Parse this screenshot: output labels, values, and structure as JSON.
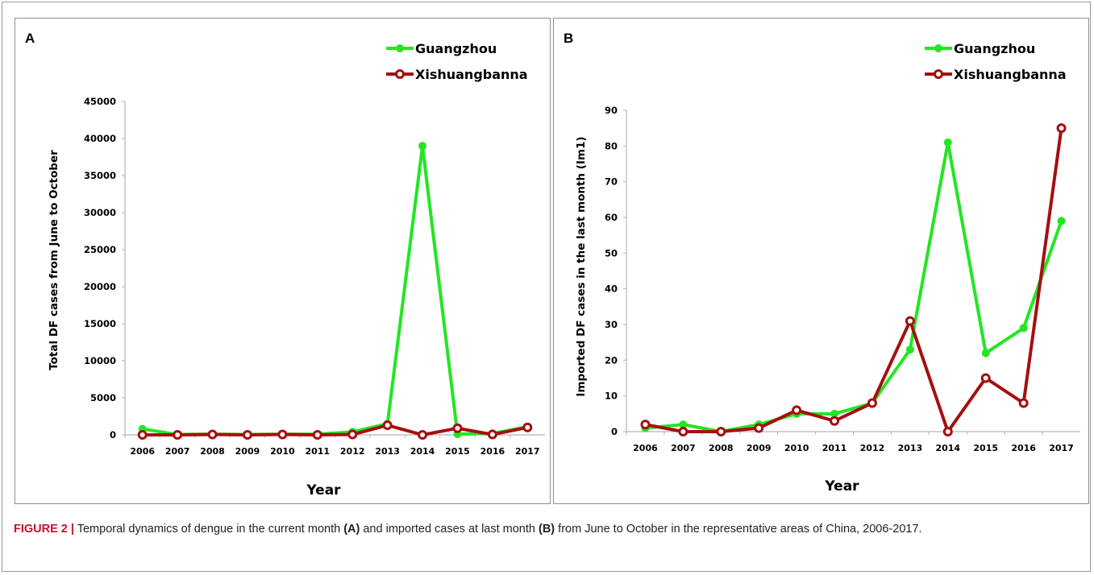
{
  "figure": {
    "caption_label": "FIGURE 2 |",
    "caption_part1": " Temporal dynamics of dengue in the current month ",
    "caption_a": "(A)",
    "caption_part2": " and imported cases at last month ",
    "caption_b": "(B)",
    "caption_part3": " from June to October in the representative areas of China, 2006-2017."
  },
  "colors": {
    "guangzhou": "#22e622",
    "xishuangbanna": "#a50f0f"
  },
  "chart_data": [
    {
      "panel_label": "A",
      "type": "line",
      "xlabel": "Year",
      "ylabel": "Total DF cases from June to October",
      "x": [
        "2006",
        "2007",
        "2008",
        "2009",
        "2010",
        "2011",
        "2012",
        "2013",
        "2014",
        "2015",
        "2016",
        "2017"
      ],
      "ylim": [
        0,
        45000
      ],
      "yticks": [
        "0",
        "5000",
        "10000",
        "15000",
        "20000",
        "25000",
        "30000",
        "35000",
        "40000",
        "45000"
      ],
      "legend_position": "top-right",
      "series": [
        {
          "name": "Guangzhou",
          "color": "#22e622",
          "values": [
            800,
            50,
            100,
            50,
            100,
            100,
            400,
            1500,
            39000,
            100,
            200,
            1100
          ]
        },
        {
          "name": "Xishuangbanna",
          "color": "#a50f0f",
          "values": [
            0,
            0,
            50,
            0,
            50,
            0,
            50,
            1300,
            0,
            900,
            50,
            1000
          ]
        }
      ]
    },
    {
      "panel_label": "B",
      "type": "line",
      "xlabel": "Year",
      "ylabel": "Imported  DF cases in the last month (Im1)",
      "x": [
        "2006",
        "2007",
        "2008",
        "2009",
        "2010",
        "2011",
        "2012",
        "2013",
        "2014",
        "2015",
        "2016",
        "2017"
      ],
      "ylim": [
        0,
        90
      ],
      "yticks": [
        "0",
        "10",
        "20",
        "30",
        "40",
        "50",
        "60",
        "70",
        "80",
        "90"
      ],
      "legend_position": "top-right",
      "series": [
        {
          "name": "Guangzhou",
          "color": "#22e622",
          "values": [
            1,
            2,
            0,
            2,
            5,
            5,
            8,
            23,
            81,
            22,
            29,
            59
          ]
        },
        {
          "name": "Xishuangbanna",
          "color": "#a50f0f",
          "values": [
            2,
            0,
            0,
            1,
            6,
            3,
            8,
            31,
            0,
            15,
            8,
            85
          ]
        }
      ]
    }
  ]
}
